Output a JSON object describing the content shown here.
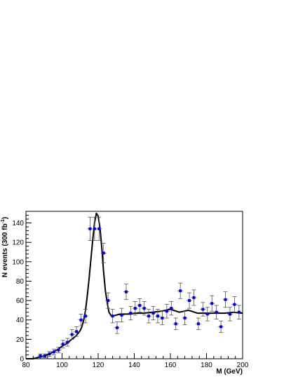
{
  "chart_data": {
    "type": "scatter",
    "xlabel": "M (GeV)",
    "ylabel": "N events (300 fb",
    "ylabel_sup": "-1",
    "ylabel_close": ")",
    "xlim": [
      80,
      200
    ],
    "ylim": [
      0,
      152
    ],
    "x_ticks": [
      80,
      100,
      120,
      140,
      160,
      180,
      200
    ],
    "y_ticks": [
      0,
      20,
      40,
      60,
      80,
      100,
      120,
      140
    ],
    "grid": false,
    "series": [
      {
        "style": "points-with-error-bars",
        "color": "#0000dd",
        "x": [
          88,
          90.5,
          93,
          95.5,
          98,
          100.5,
          103,
          105.5,
          108,
          110.5,
          113,
          115.5,
          118,
          120.5,
          123,
          125.5,
          128,
          130.5,
          133,
          135.5,
          138,
          140.5,
          143,
          145.5,
          148,
          150.5,
          153,
          155.5,
          158,
          160.5,
          163,
          165.5,
          168,
          170.5,
          173,
          175.5,
          178,
          180.5,
          183,
          185.5,
          188,
          190.5,
          193,
          195.5,
          198
        ],
        "y": [
          3,
          3,
          5,
          7,
          9,
          15,
          17,
          25,
          28,
          40,
          44,
          134,
          134,
          134,
          109,
          60,
          44,
          32,
          45,
          69,
          47,
          52,
          55,
          52,
          44,
          47,
          44,
          42,
          49,
          52,
          36,
          70,
          42,
          60,
          63,
          36,
          51,
          46,
          57,
          48,
          33,
          61,
          46,
          56,
          48
        ],
        "yerr": [
          2,
          2,
          2.5,
          3,
          3,
          4,
          4,
          5,
          5,
          6,
          7,
          12,
          12,
          12,
          10,
          8,
          7,
          6,
          7,
          8,
          7,
          7,
          7,
          7,
          7,
          7,
          7,
          7,
          7,
          7,
          6,
          8,
          7,
          8,
          8,
          6,
          7,
          7,
          8,
          7,
          6,
          8,
          7,
          8,
          7
        ]
      },
      {
        "style": "line",
        "color": "#000000",
        "x": [
          80,
          82,
          84,
          86,
          88,
          90,
          92,
          94,
          96,
          98,
          100,
          102,
          104,
          106,
          108,
          110,
          111,
          112,
          113,
          114,
          115,
          116,
          117,
          118,
          119,
          120,
          121,
          122,
          123,
          124,
          125,
          126,
          127,
          128,
          130,
          132,
          135,
          138,
          140,
          145,
          150,
          155,
          160,
          165,
          170,
          175,
          180,
          185,
          190,
          195,
          200
        ],
        "y": [
          0,
          0,
          0,
          1,
          2,
          3,
          4,
          6,
          8,
          10,
          13,
          15,
          18,
          21,
          24,
          29,
          33,
          40,
          50,
          65,
          83,
          103,
          123,
          140,
          150,
          147,
          135,
          115,
          90,
          70,
          58,
          48,
          45,
          44,
          45,
          46,
          46,
          46,
          47,
          47,
          48,
          49,
          51,
          48,
          50,
          47,
          47,
          47,
          47,
          48,
          47
        ]
      }
    ]
  }
}
